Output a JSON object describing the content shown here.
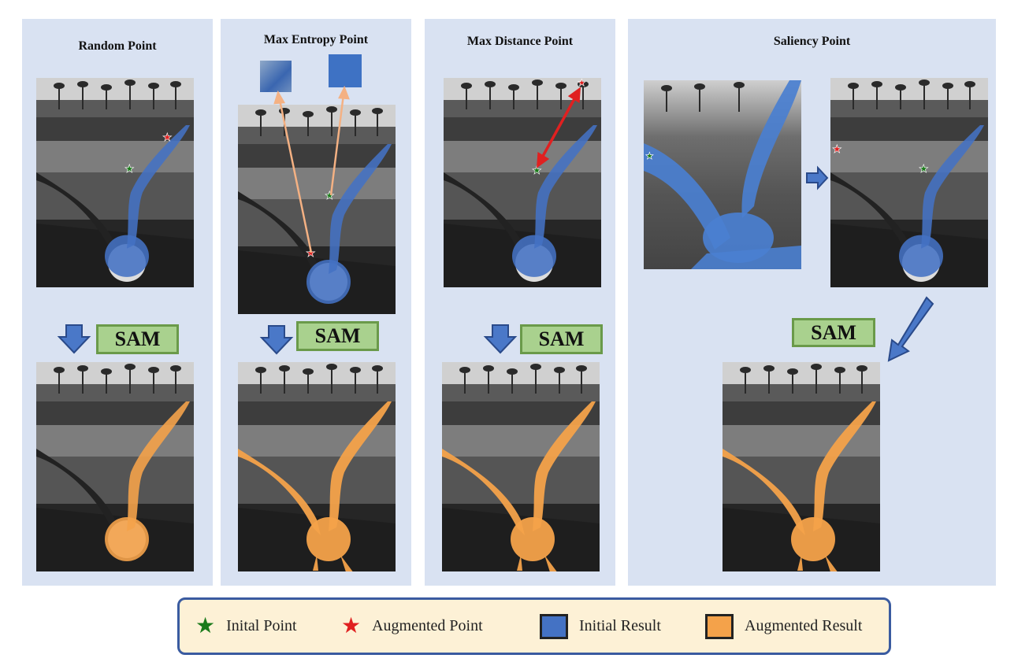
{
  "panels": [
    {
      "title": "Random Point"
    },
    {
      "title": "Max Entropy Point"
    },
    {
      "title": "Max Distance Point"
    },
    {
      "title": "Saliency Point"
    }
  ],
  "sam_label": "SAM",
  "colors": {
    "panel_bg": "#d9e2f2",
    "initial_result": "#4472c4",
    "augmented_result": "#f4a24a",
    "sam_box": "#a9d18e",
    "arrow": "#3a5ba0",
    "initial_point": "#1a7a1a",
    "augmented_point": "#e02020",
    "entropy_arrow": "#f4b183",
    "distance_arrow": "#e02020"
  },
  "legend": {
    "initial_point": "Inital Point",
    "augmented_point": "Augmented Point",
    "initial_result": "Initial Result",
    "augmented_result": "Augmented Result"
  },
  "icons": {
    "initial_point": "green-star-icon",
    "augmented_point": "red-star-icon",
    "down_arrow": "blue-down-arrow-icon",
    "right_arrow": "blue-right-arrow-icon"
  }
}
